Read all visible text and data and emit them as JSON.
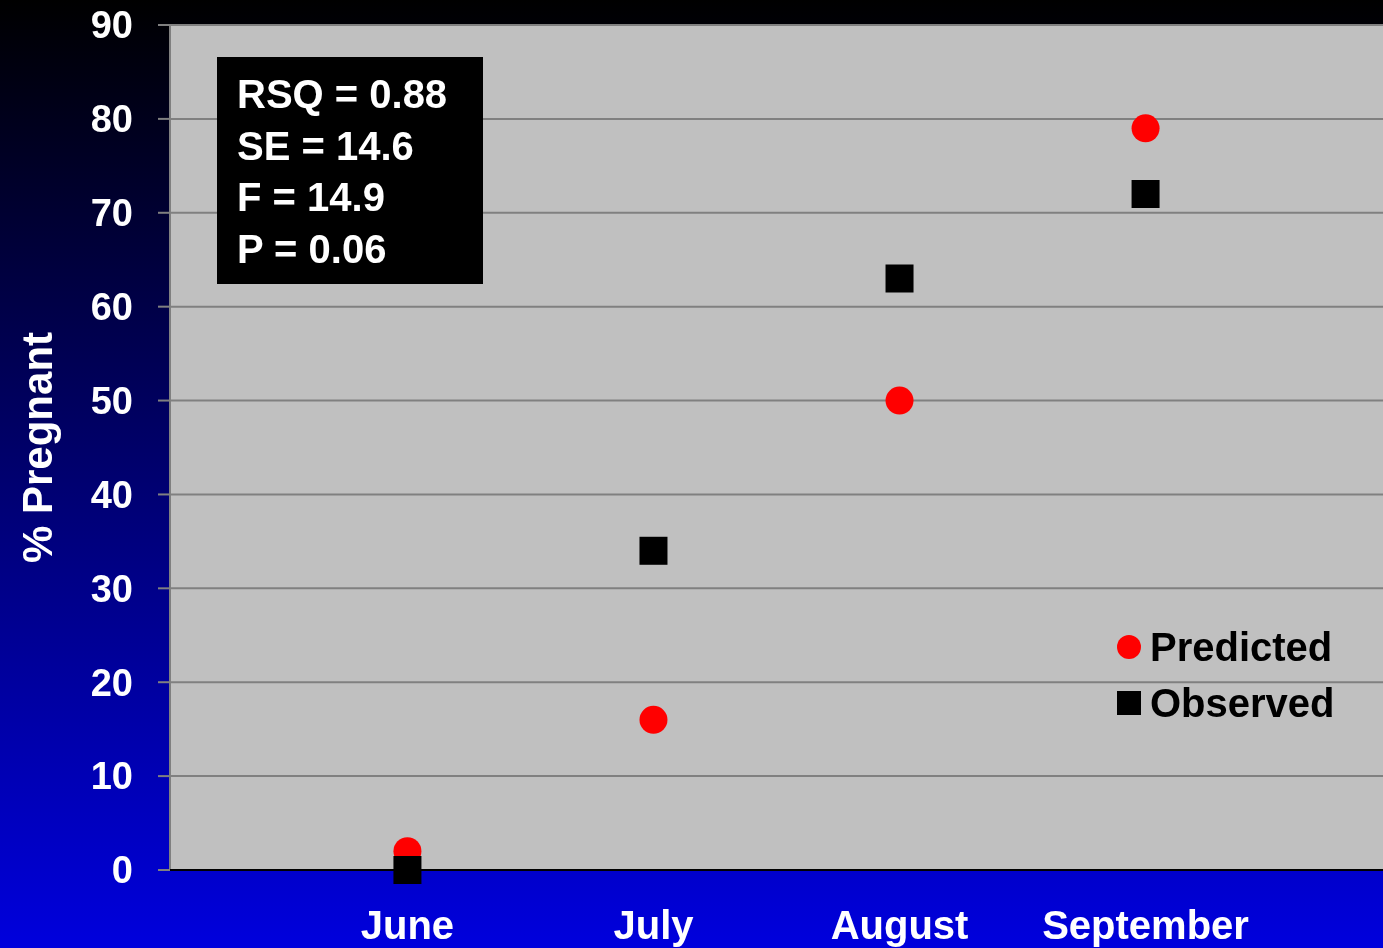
{
  "chart_data": {
    "type": "scatter",
    "ylabel": "% Pregnant",
    "categories": [
      "June",
      "July",
      "August",
      "September"
    ],
    "series": [
      {
        "name": "Predicted",
        "color": "#ff0000",
        "marker": "circle",
        "values": [
          2,
          16,
          50,
          79
        ]
      },
      {
        "name": "Observed",
        "color": "#000000",
        "marker": "square",
        "values": [
          0,
          34,
          63,
          72
        ]
      }
    ],
    "ylim": [
      0,
      90
    ],
    "yticks": [
      0,
      10,
      20,
      30,
      40,
      50,
      60,
      70,
      80,
      90
    ],
    "grid": "y",
    "legend": "right",
    "annotations": [
      "RSQ = 0.88",
      "SE = 14.6",
      "F = 14.9",
      "P = 0.06"
    ]
  }
}
